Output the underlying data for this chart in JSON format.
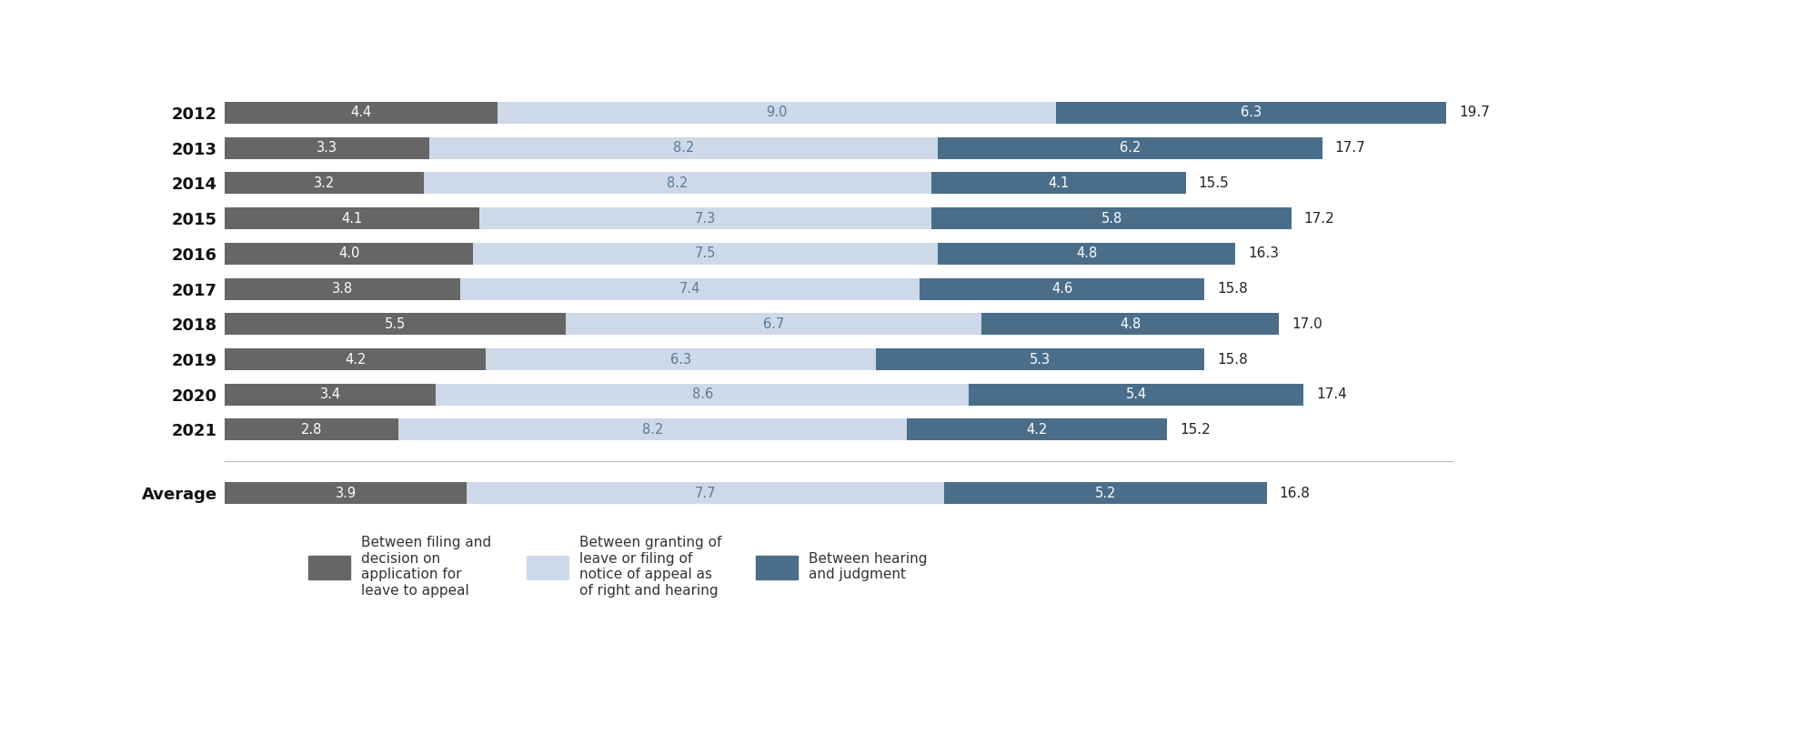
{
  "years": [
    "2012",
    "2013",
    "2014",
    "2015",
    "2016",
    "2017",
    "2018",
    "2019",
    "2020",
    "2021"
  ],
  "average_label": "Average",
  "seg1": [
    4.4,
    3.3,
    3.2,
    4.1,
    4.0,
    3.8,
    5.5,
    4.2,
    3.4,
    2.8
  ],
  "seg2": [
    9.0,
    8.2,
    8.2,
    7.3,
    7.5,
    7.4,
    6.7,
    6.3,
    8.6,
    8.2
  ],
  "seg3": [
    6.3,
    6.2,
    4.1,
    5.8,
    4.8,
    4.6,
    4.8,
    5.3,
    5.4,
    4.2
  ],
  "avg_seg1": 3.9,
  "avg_seg2": 7.7,
  "avg_seg3": 5.2,
  "totals": [
    19.7,
    17.7,
    15.5,
    17.2,
    16.3,
    15.8,
    17.0,
    15.8,
    17.4,
    15.2
  ],
  "avg_total": 16.8,
  "color_seg1": "#666666",
  "color_seg2": "#cdd9e8",
  "color_seg3": "#4a6e8a",
  "legend1": "Between filing and\ndecision on\napplication for\nleave to appeal",
  "legend2": "Between granting of\nleave or filing of\nnotice of appeal as\nof right and hearing",
  "legend3": "Between hearing\nand judgment",
  "bar_height": 0.62,
  "label_fontsize": 10.5,
  "tick_fontsize": 13,
  "avg_tick_fontsize": 14,
  "total_fontsize": 11,
  "legend_fontsize": 11,
  "background_color": "#ffffff",
  "xlim": [
    0,
    22.5
  ]
}
